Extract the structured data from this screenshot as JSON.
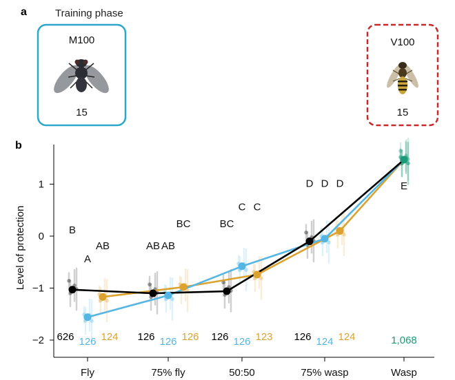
{
  "panel_a": {
    "label": "a",
    "phase_title": "Training phase",
    "left_card": {
      "title": "M100",
      "count": "15",
      "border_color": "#2aa7c9",
      "icon": "fly-icon"
    },
    "right_card": {
      "title": "V100",
      "count": "15",
      "border_color": "#c8282a",
      "icon": "wasp-icon"
    }
  },
  "chart_data": {
    "panel_label": "b",
    "type": "line",
    "ylabel": "Level of protection",
    "xlabel": "",
    "ylim": [
      -2.2,
      1.7
    ],
    "yticks": [
      1,
      0,
      -1,
      -2
    ],
    "ytick_labels": [
      "1",
      "0",
      "−1",
      "−2"
    ],
    "categories": [
      "Fly",
      "75% fly",
      "50:50",
      "75% wasp",
      "Wasp"
    ],
    "series": [
      {
        "color": "#000000",
        "x": [
          "Fly",
          "75% fly",
          "50:50",
          "75% wasp",
          "Wasp"
        ],
        "values": [
          -1.03,
          -1.1,
          -1.06,
          -0.1,
          1.47
        ]
      },
      {
        "color": "#55b6e3",
        "x": [
          "Fly",
          "75% fly",
          "50:50",
          "75% wasp",
          "Wasp"
        ],
        "values": [
          -1.56,
          -1.14,
          -0.58,
          -0.05,
          1.47
        ]
      },
      {
        "color": "#dca22f",
        "x": [
          "Fly",
          "75% fly",
          "50:50",
          "75% wasp",
          "Wasp"
        ],
        "values": [
          -1.17,
          -0.98,
          -0.74,
          0.1,
          1.47
        ]
      }
    ],
    "wasp_point_color": "#1a9a78",
    "letters": [
      {
        "text": "B",
        "cat": "Fly",
        "offset": -1,
        "y": 0.05
      },
      {
        "text": "A",
        "cat": "Fly",
        "offset": 0,
        "y": -0.5
      },
      {
        "text": "AB",
        "cat": "Fly",
        "offset": 1,
        "y": -0.25
      },
      {
        "text": "AB",
        "cat": "75% fly",
        "offset": -1,
        "y": -0.25
      },
      {
        "text": "AB",
        "cat": "75% fly",
        "offset": 0,
        "y": -0.25
      },
      {
        "text": "BC",
        "cat": "75% fly",
        "offset": 1,
        "y": 0.17
      },
      {
        "text": "BC",
        "cat": "50:50",
        "offset": -1,
        "y": 0.17
      },
      {
        "text": "C",
        "cat": "50:50",
        "offset": 0,
        "y": 0.5
      },
      {
        "text": "C",
        "cat": "50:50",
        "offset": 1,
        "y": 0.5
      },
      {
        "text": "D",
        "cat": "75% wasp",
        "offset": -1,
        "y": 0.95
      },
      {
        "text": "D",
        "cat": "75% wasp",
        "offset": 0,
        "y": 0.95
      },
      {
        "text": "D",
        "cat": "75% wasp",
        "offset": 1,
        "y": 0.95
      },
      {
        "text": "E",
        "cat": "Wasp",
        "offset": 0,
        "y": 0.9
      }
    ],
    "n_labels": [
      {
        "cat": "Fly",
        "values": [
          "626",
          "126",
          "124"
        ]
      },
      {
        "cat": "75% fly",
        "values": [
          "126",
          "126",
          "126"
        ]
      },
      {
        "cat": "50:50",
        "values": [
          "126",
          "126",
          "123"
        ]
      },
      {
        "cat": "75% wasp",
        "values": [
          "126",
          "124",
          "124"
        ]
      },
      {
        "cat": "Wasp",
        "values": [
          "1,068"
        ]
      }
    ]
  }
}
